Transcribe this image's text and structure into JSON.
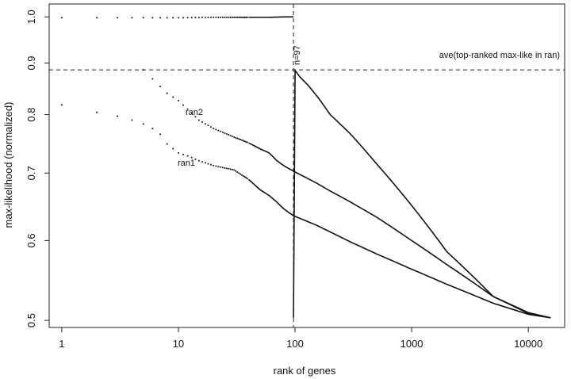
{
  "chart_data": {
    "type": "scatter",
    "xlabel": "rank of genes",
    "ylabel": "max-likelihood (normalized)",
    "xscale": "log",
    "yscale": "log",
    "xlim": [
      0.78,
      20500
    ],
    "ylim": [
      0.492,
      1.03
    ],
    "x_ticks": [
      1,
      10,
      100,
      1000,
      10000
    ],
    "x_tick_labels": [
      "1",
      "10",
      "100",
      "1000",
      "10000"
    ],
    "y_ticks": [
      0.5,
      0.6,
      0.7,
      0.8,
      0.9,
      1.0
    ],
    "y_tick_labels": [
      "0.5",
      "0.6",
      "0.7",
      "0.8",
      "0.9",
      "1.0"
    ],
    "grid": false,
    "legend": "none",
    "reference_lines": [
      {
        "orientation": "horizontal",
        "y": 0.886,
        "style": "dashed",
        "label": "ave(top-ranked max-like in ran)"
      },
      {
        "orientation": "vertical",
        "x": 97,
        "style": "dashed",
        "label": "n=97"
      }
    ],
    "series": [
      {
        "style": "points-then-line",
        "x": [
          1,
          2,
          3,
          4,
          5,
          7,
          10,
          20,
          40,
          60,
          80,
          97
        ],
        "y": [
          0.998,
          0.998,
          0.998,
          0.998,
          0.998,
          0.998,
          0.998,
          0.999,
          0.999,
          0.999,
          1.0,
          1.0
        ]
      },
      {
        "style": "points-then-line",
        "x": [
          97,
          100,
          110,
          130,
          160,
          200,
          300,
          500,
          1000,
          2000,
          5000,
          10000,
          15500
        ],
        "y": [
          0.91,
          0.885,
          0.872,
          0.855,
          0.83,
          0.8,
          0.765,
          0.715,
          0.65,
          0.585,
          0.528,
          0.508,
          0.503
        ]
      },
      {
        "name": "ran2",
        "style": "points-then-line",
        "x": [
          5,
          6,
          8,
          10,
          12,
          15,
          20,
          30,
          40,
          50,
          60,
          70,
          80,
          97,
          150,
          200,
          300,
          500,
          1000,
          2000,
          5000,
          10000,
          15500
        ],
        "y": [
          0.886,
          0.868,
          0.84,
          0.826,
          0.81,
          0.79,
          0.775,
          0.76,
          0.75,
          0.74,
          0.733,
          0.72,
          0.712,
          0.703,
          0.685,
          0.672,
          0.655,
          0.633,
          0.6,
          0.568,
          0.528,
          0.509,
          0.503
        ]
      },
      {
        "name": "ran1",
        "style": "points-then-line",
        "x": [
          1,
          2,
          3,
          4,
          5,
          6,
          7,
          8,
          10,
          12,
          15,
          20,
          30,
          40,
          50,
          60,
          70,
          80,
          97,
          150,
          200,
          300,
          500,
          1000,
          2000,
          5000,
          10000,
          15500
        ],
        "y": [
          0.818,
          0.804,
          0.797,
          0.79,
          0.783,
          0.775,
          0.765,
          0.748,
          0.733,
          0.728,
          0.72,
          0.712,
          0.705,
          0.69,
          0.674,
          0.665,
          0.655,
          0.645,
          0.635,
          0.622,
          0.612,
          0.598,
          0.582,
          0.562,
          0.543,
          0.52,
          0.507,
          0.503
        ]
      }
    ],
    "annotations": [
      "ran2",
      "ran1",
      "n=97",
      "ave(top-ranked max-like in ran)"
    ]
  }
}
